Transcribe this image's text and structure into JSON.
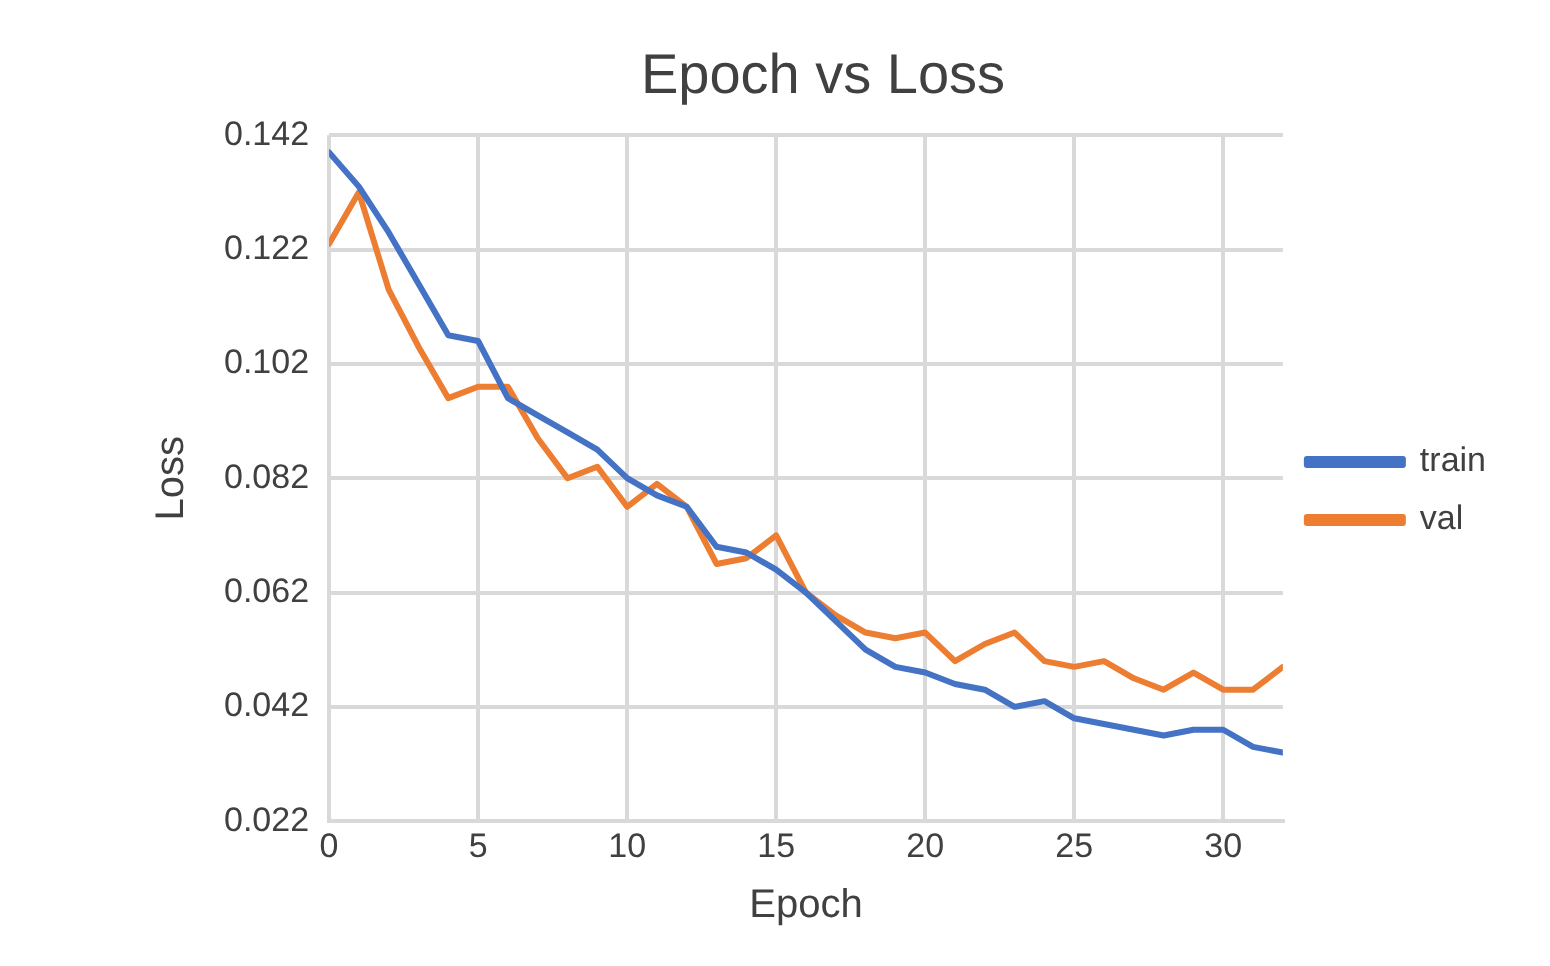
{
  "chart_data": {
    "type": "line",
    "title": "Epoch vs Loss",
    "xlabel": "Epoch",
    "ylabel": "Loss",
    "x": [
      0,
      1,
      2,
      3,
      4,
      5,
      6,
      7,
      8,
      9,
      10,
      11,
      12,
      13,
      14,
      15,
      16,
      17,
      18,
      19,
      20,
      21,
      22,
      23,
      24,
      25,
      26,
      27,
      28,
      29,
      30,
      31,
      32
    ],
    "series": [
      {
        "name": "train",
        "color": "#4472c4",
        "values": [
          0.139,
          0.133,
          0.125,
          0.116,
          0.107,
          0.106,
          0.096,
          0.093,
          0.09,
          0.087,
          0.082,
          0.079,
          0.077,
          0.07,
          0.069,
          0.066,
          0.062,
          0.057,
          0.052,
          0.049,
          0.048,
          0.046,
          0.045,
          0.042,
          0.043,
          0.04,
          0.039,
          0.038,
          0.037,
          0.038,
          0.038,
          0.035,
          0.034
        ]
      },
      {
        "name": "val",
        "color": "#ed7d31",
        "values": [
          0.123,
          0.132,
          0.115,
          0.105,
          0.096,
          0.098,
          0.098,
          0.089,
          0.082,
          0.084,
          0.077,
          0.081,
          0.077,
          0.067,
          0.068,
          0.072,
          0.062,
          0.058,
          0.055,
          0.054,
          0.055,
          0.05,
          0.053,
          0.055,
          0.05,
          0.049,
          0.05,
          0.047,
          0.045,
          0.048,
          0.045,
          0.045,
          0.049
        ]
      }
    ],
    "xlim": [
      0,
      32
    ],
    "xticks": [
      0,
      5,
      10,
      15,
      20,
      25,
      30
    ],
    "ylim": [
      0.022,
      0.142
    ],
    "yticks": [
      0.022,
      0.042,
      0.062,
      0.082,
      0.102,
      0.122,
      0.142
    ],
    "grid": true,
    "legend": "right",
    "marker": "none",
    "line_style": "solid"
  }
}
